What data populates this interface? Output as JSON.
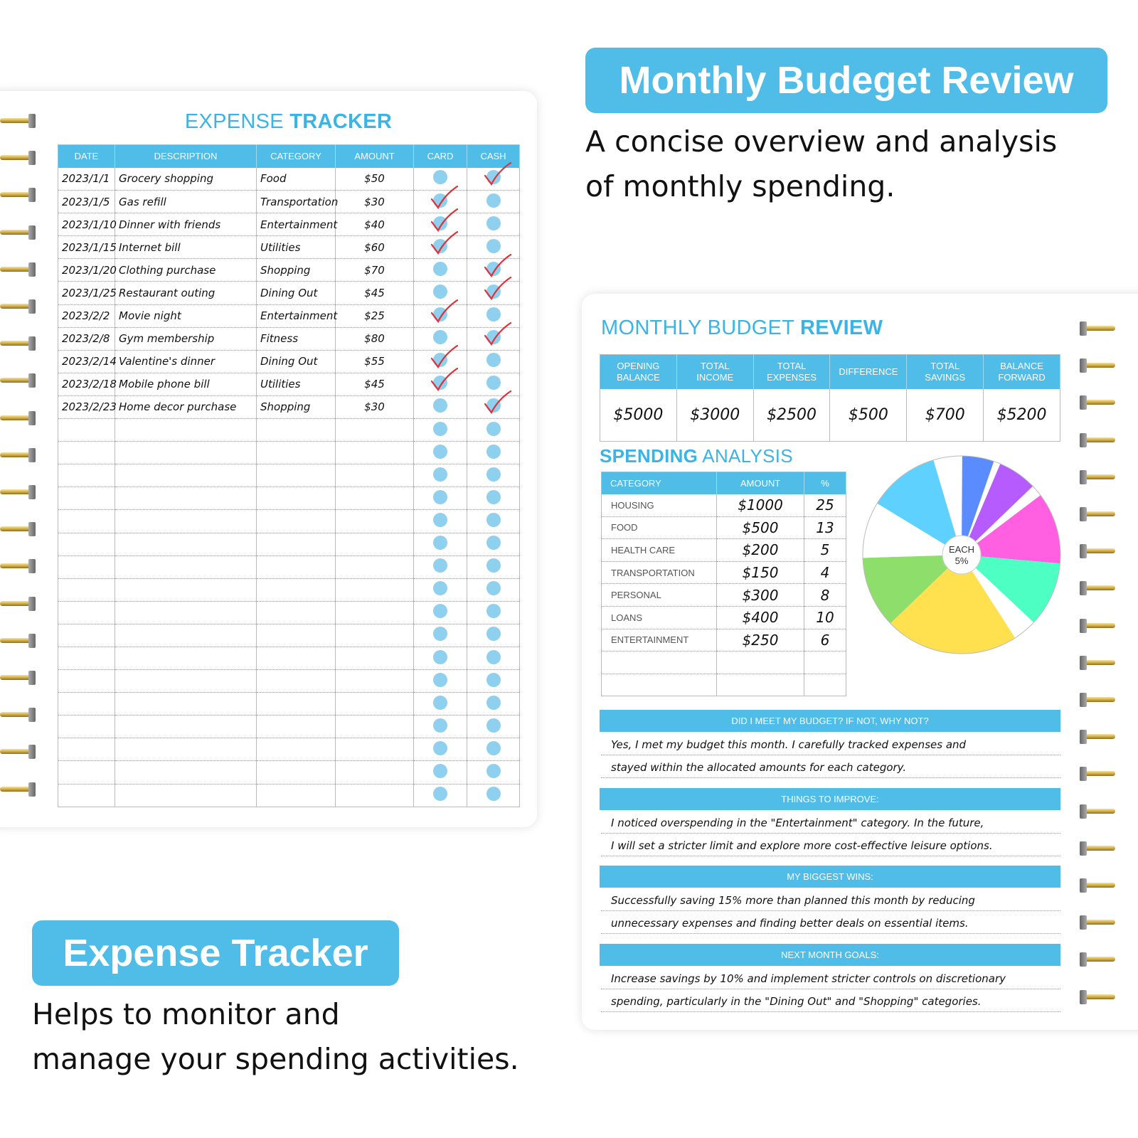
{
  "expense_tracker": {
    "title_light": "EXPENSE",
    "title_bold": "TRACKER",
    "columns": [
      "DATE",
      "DESCRIPTION",
      "CATEGORY",
      "AMOUNT",
      "CARD",
      "CASH"
    ],
    "rows": [
      {
        "date": "2023/1/1",
        "description": "Grocery shopping",
        "category": "Food",
        "amount": "$50",
        "paid": "cash"
      },
      {
        "date": "2023/1/5",
        "description": "Gas refill",
        "category": "Transportation",
        "amount": "$30",
        "paid": "card"
      },
      {
        "date": "2023/1/10",
        "description": "Dinner with friends",
        "category": "Entertainment",
        "amount": "$40",
        "paid": "card"
      },
      {
        "date": "2023/1/15",
        "description": "Internet bill",
        "category": "Utilities",
        "amount": "$60",
        "paid": "card"
      },
      {
        "date": "2023/1/20",
        "description": "Clothing purchase",
        "category": "Shopping",
        "amount": "$70",
        "paid": "cash"
      },
      {
        "date": "2023/1/25",
        "description": "Restaurant outing",
        "category": "Dining Out",
        "amount": "$45",
        "paid": "cash"
      },
      {
        "date": "2023/2/2",
        "description": "Movie night",
        "category": "Entertainment",
        "amount": "$25",
        "paid": "card"
      },
      {
        "date": "2023/2/8",
        "description": "Gym membership",
        "category": "Fitness",
        "amount": "$80",
        "paid": "cash"
      },
      {
        "date": "2023/2/14",
        "description": "Valentine's dinner",
        "category": "Dining Out",
        "amount": "$55",
        "paid": "card"
      },
      {
        "date": "2023/2/18",
        "description": "Mobile phone bill",
        "category": "Utilities",
        "amount": "$45",
        "paid": "card"
      },
      {
        "date": "2023/2/23",
        "description": "Home decor purchase",
        "category": "Shopping",
        "amount": "$30",
        "paid": "cash"
      }
    ]
  },
  "monthly_label": "Monthly Budeget Review",
  "monthly_caption": [
    "A concise overview and analysis",
    "of monthly spending."
  ],
  "expense_label": "Expense Tracker",
  "expense_caption": [
    "Helps to monitor and",
    "manage your spending activities."
  ],
  "budget_review": {
    "title_light": "MONTHLY BUDGET",
    "title_bold": "REVIEW",
    "summary_headers": [
      [
        "OPENING",
        "BALANCE"
      ],
      [
        "TOTAL",
        "INCOME"
      ],
      [
        "TOTAL",
        "EXPENSES"
      ],
      [
        "DIFFERENCE",
        ""
      ],
      [
        "TOTAL",
        "SAVINGS"
      ],
      [
        "BALANCE",
        "FORWARD"
      ]
    ],
    "summary_values": [
      "$5000",
      "$3000",
      "$2500",
      "$500",
      "$700",
      "$5200"
    ],
    "analysis_title_bold": "SPENDING",
    "analysis_title_light": "ANALYSIS",
    "analysis_headers": [
      "CATEGORY",
      "AMOUNT",
      "%"
    ],
    "analysis_rows": [
      {
        "category": "HOUSING",
        "amount": "$1000",
        "pct": "25"
      },
      {
        "category": "FOOD",
        "amount": "$500",
        "pct": "13"
      },
      {
        "category": "HEALTH CARE",
        "amount": "$200",
        "pct": "5"
      },
      {
        "category": "TRANSPORTATION",
        "amount": "$150",
        "pct": "4"
      },
      {
        "category": "PERSONAL",
        "amount": "$300",
        "pct": "8"
      },
      {
        "category": "LOANS",
        "amount": "$400",
        "pct": "10"
      },
      {
        "category": "ENTERTAINMENT",
        "amount": "$250",
        "pct": "6"
      }
    ],
    "sections": [
      {
        "heading": "DID I MEET MY BUDGET? IF NOT, WHY NOT?",
        "lines": [
          "Yes, I met my budget this month. I carefully tracked expenses and",
          "stayed within the allocated amounts for each category."
        ]
      },
      {
        "heading": "THINGS TO IMPROVE:",
        "lines": [
          "I noticed overspending in the \"Entertainment\" category. In the future,",
          "I will set a stricter limit and explore more cost-effective leisure options."
        ]
      },
      {
        "heading": "MY BIGGEST WINS:",
        "lines": [
          "Successfully saving 15% more than planned this month by reducing",
          "unnecessary expenses and finding better deals on essential items."
        ]
      },
      {
        "heading": "NEXT MONTH GOALS:",
        "lines": [
          "Increase savings by 10% and implement stricter controls on discretionary",
          "spending, particularly in the \"Dining Out\" and \"Shopping\" categories."
        ]
      }
    ]
  },
  "chart_data": {
    "type": "pie",
    "center_label": [
      "EACH",
      "5%"
    ],
    "slices_percent_clockwise_from_top": [
      {
        "color": "#5b8cff",
        "value": 5.3
      },
      {
        "color": "#ffffff",
        "value": 1.1
      },
      {
        "color": "#b65cff",
        "value": 6.4
      },
      {
        "color": "#ffffff",
        "value": 1.9
      },
      {
        "color": "#ff5fe0",
        "value": 11.7
      },
      {
        "color": "#4effc4",
        "value": 10.6
      },
      {
        "color": "#ffffff",
        "value": 3.9
      },
      {
        "color": "#ffe150",
        "value": 21.9
      },
      {
        "color": "#8ede6c",
        "value": 11.7
      },
      {
        "color": "#ffffff",
        "value": 9.2
      },
      {
        "color": "#5fd1ff",
        "value": 11.7
      },
      {
        "color": "#ffffff",
        "value": 4.7
      }
    ]
  },
  "colors": {
    "accent": "#4fbde8",
    "title": "#3bb4e5",
    "check": "#e0303a",
    "dot": "#8fd0ee"
  }
}
